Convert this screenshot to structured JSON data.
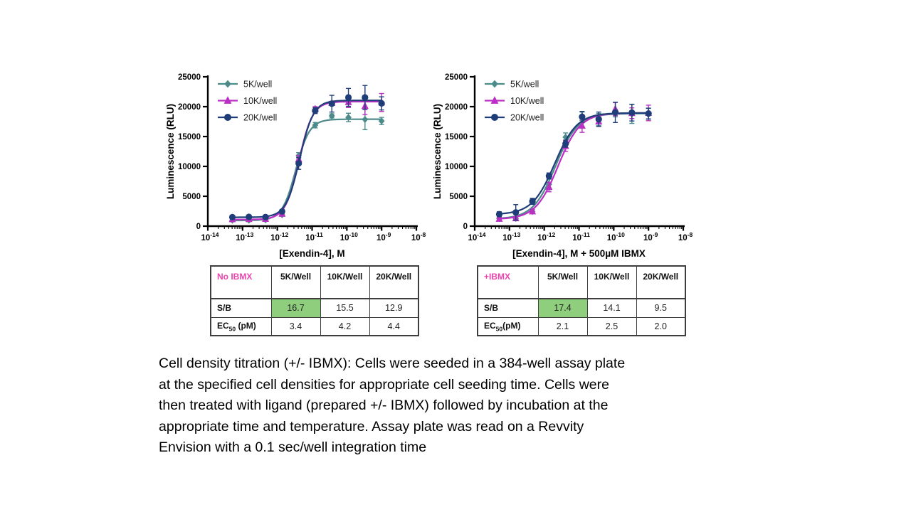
{
  "colors": {
    "background": "#ffffff",
    "axis": "#000000",
    "tick_label": "#000000",
    "legend_text": "#222222",
    "series_5k": "#4d8b8b",
    "series_10k": "#bb2fc4",
    "series_20k": "#1f3d78",
    "table_border": "#3e3e3e",
    "table_header_pink": "#ec43ad",
    "highlight_green": "#8fce7d"
  },
  "chart_data": [
    {
      "type": "scatter",
      "title": "",
      "xlabel": "[Exendin-4], M",
      "ylabel": "Luminescence (RLU)",
      "x_scale": "log",
      "x_decades": [
        -14,
        -8
      ],
      "ylim": [
        0,
        25000
      ],
      "yticks": [
        0,
        5000,
        10000,
        15000,
        20000,
        25000
      ],
      "grid": false,
      "legend_position": "top-left",
      "x": [
        5.08e-14,
        1.52e-13,
        4.57e-13,
        1.37e-12,
        4.12e-12,
        1.23e-11,
        3.7e-11,
        1.11e-10,
        3.33e-10,
        1e-09
      ],
      "series": [
        {
          "name": "5K/well",
          "marker": "diamond",
          "color_key": "series_5k",
          "values": [
            1000,
            1000,
            1050,
            1900,
            11800,
            16900,
            18450,
            18200,
            17850,
            17600
          ],
          "errors": [
            250,
            250,
            250,
            250,
            500,
            450,
            350,
            700,
            1700,
            600
          ],
          "fit": {
            "bottom": 950,
            "top": 17900,
            "ec50_pM": 3.4,
            "hill": 2.2
          }
        },
        {
          "name": "10K/well",
          "marker": "triangle",
          "color_key": "series_10k",
          "values": [
            1150,
            1180,
            1200,
            2050,
            11200,
            19600,
            20600,
            20750,
            20100,
            20700
          ],
          "errors": [
            180,
            180,
            180,
            250,
            600,
            400,
            300,
            900,
            1400,
            1500
          ],
          "fit": {
            "bottom": 1100,
            "top": 20850,
            "ec50_pM": 4.2,
            "hill": 2.2
          }
        },
        {
          "name": "20K/well",
          "marker": "circle",
          "color_key": "series_20k",
          "values": [
            1500,
            1550,
            1520,
            2450,
            10500,
            19350,
            20500,
            21550,
            21550,
            20550
          ],
          "errors": [
            280,
            280,
            280,
            300,
            1000,
            500,
            1400,
            1500,
            2000,
            1100
          ],
          "fit": {
            "bottom": 1480,
            "top": 21050,
            "ec50_pM": 4.4,
            "hill": 2.2
          }
        }
      ]
    },
    {
      "type": "scatter",
      "title": "",
      "xlabel": "[Exendin-4], M + 500µM IBMX",
      "ylabel": "Luminescence (RLU)",
      "x_scale": "log",
      "x_decades": [
        -14,
        -8
      ],
      "ylim": [
        0,
        25000
      ],
      "yticks": [
        0,
        5000,
        10000,
        15000,
        20000,
        25000
      ],
      "grid": false,
      "legend_position": "top-left",
      "x": [
        5.08e-14,
        1.52e-13,
        4.57e-13,
        1.37e-12,
        4.12e-12,
        1.23e-11,
        3.7e-11,
        1.11e-10,
        3.33e-10,
        1e-09
      ],
      "series": [
        {
          "name": "5K/well",
          "marker": "diamond",
          "color_key": "series_5k",
          "values": [
            1300,
            1300,
            2450,
            7000,
            14900,
            18400,
            17850,
            18900,
            18800,
            18800
          ],
          "errors": [
            300,
            300,
            350,
            900,
            700,
            700,
            1000,
            600,
            1600,
            900
          ],
          "fit": {
            "bottom": 1200,
            "top": 18850,
            "ec50_pM": 2.1,
            "hill": 1.35
          }
        },
        {
          "name": "10K/well",
          "marker": "triangle",
          "color_key": "series_10k",
          "values": [
            1200,
            1300,
            2450,
            6550,
            13400,
            16800,
            17500,
            19600,
            18900,
            18950
          ],
          "errors": [
            250,
            300,
            350,
            800,
            900,
            1100,
            800,
            1100,
            900,
            1300
          ],
          "fit": {
            "bottom": 1150,
            "top": 18950,
            "ec50_pM": 2.5,
            "hill": 1.35
          }
        },
        {
          "name": "20K/well",
          "marker": "circle",
          "color_key": "series_20k",
          "values": [
            2000,
            2300,
            4150,
            8400,
            13800,
            18300,
            17900,
            19050,
            19000,
            18850
          ],
          "errors": [
            400,
            1300,
            500,
            500,
            600,
            900,
            1200,
            1700,
            1400,
            900
          ],
          "fit": {
            "bottom": 1950,
            "top": 18950,
            "ec50_pM": 2.0,
            "hill": 1.35
          }
        }
      ]
    }
  ],
  "tables": [
    {
      "corner_label": "No IBMX",
      "columns": [
        "5K/Well",
        "10K/Well",
        "20K/Well"
      ],
      "rows": [
        {
          "label": {
            "text": "S/B"
          },
          "values": [
            "16.7",
            "15.5",
            "12.9"
          ],
          "highlight_col": 0
        },
        {
          "label": {
            "text": "EC",
            "sub": "50",
            "after": " (pM)"
          },
          "values": [
            "3.4",
            "4.2",
            "4.4"
          ],
          "highlight_col": -1
        }
      ]
    },
    {
      "corner_label": "+IBMX",
      "columns": [
        "5K/Well",
        "10K/Well",
        "20K/Well"
      ],
      "rows": [
        {
          "label": {
            "text": "S/B"
          },
          "values": [
            "17.4",
            "14.1",
            "9.5"
          ],
          "highlight_col": 0
        },
        {
          "label": {
            "text": "EC",
            "sub": "50",
            "after": "(pM)"
          },
          "values": [
            "2.1",
            "2.5",
            "2.0"
          ],
          "highlight_col": -1
        }
      ]
    }
  ],
  "caption": {
    "lines": [
      "Cell density titration (+/- IBMX): Cells were seeded in a 384-well assay plate",
      "at the specified cell densities for appropriate cell seeding time. Cells were",
      "then treated with ligand (prepared +/- IBMX) followed by incubation at the",
      "appropriate time and temperature. Assay plate was read on a Revvity",
      "Envision with a 0.1 sec/well integration time"
    ]
  }
}
